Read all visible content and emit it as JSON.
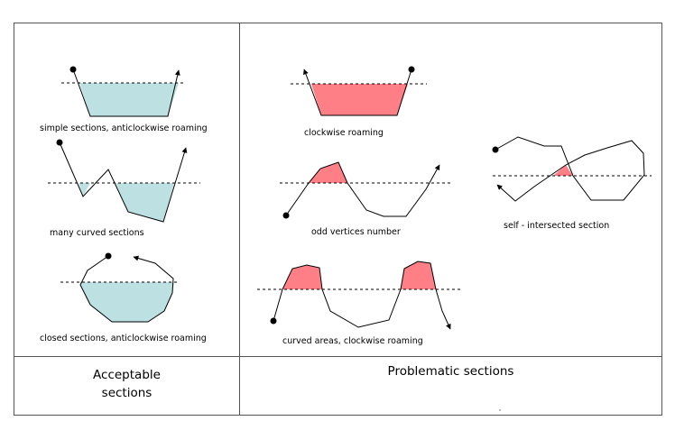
{
  "colors": {
    "acceptable_fill": "#bde0e2",
    "problem_fill": "#ff7f86",
    "stroke": "#000000",
    "border": "#555555"
  },
  "labels": {
    "simple": "simple sections, anticlockwise roaming",
    "many_curved": "many curved sections",
    "closed": "closed sections, anticlockwise roaming",
    "clockwise": "clockwise roaming",
    "odd_vertices": "odd vertices number",
    "curved_areas": "curved areas, clockwise roaming",
    "self_intersected": "self - intersected section"
  },
  "footer": {
    "acceptable_line1": "Acceptable",
    "acceptable_line2": "sections",
    "problematic": "Problematic sections"
  }
}
